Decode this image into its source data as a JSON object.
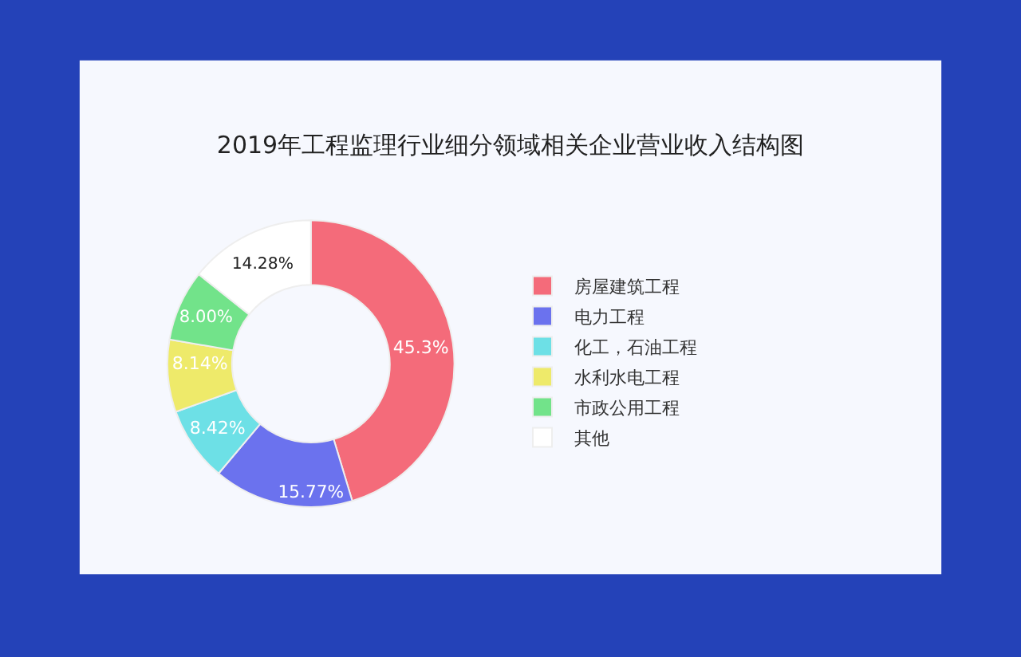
{
  "chart_data": {
    "type": "donut",
    "title": "2019年工程监理行业细分领域相关企业营业收入结构图",
    "categories": [
      "房屋建筑工程",
      "电力工程",
      "化工，石油工程",
      "水利水电工程",
      "市政公用工程",
      "其他"
    ],
    "values": [
      45.3,
      15.77,
      8.42,
      8.14,
      8.0,
      14.28
    ],
    "value_labels": [
      "45.3%",
      "15.77%",
      "8.42%",
      "8.14%",
      "8.00%",
      "14.28%"
    ],
    "colors": [
      "#f46b7a",
      "#6b72ee",
      "#6de0e6",
      "#eeea6a",
      "#72e38a",
      "#ffffff"
    ],
    "legend": "right"
  }
}
